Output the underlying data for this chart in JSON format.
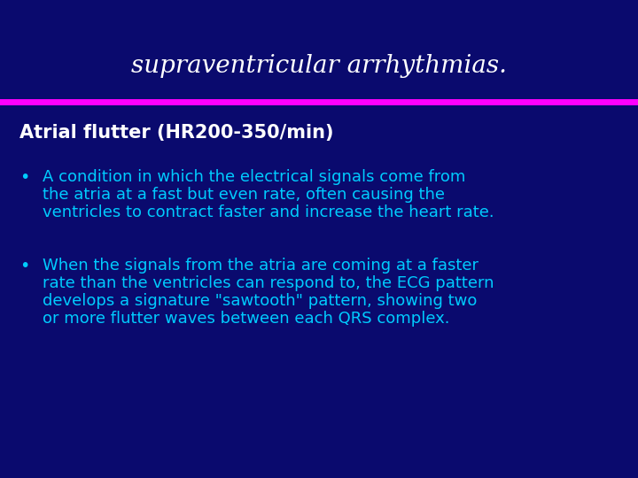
{
  "title": "supraventricular arrhythmias.",
  "title_color": "#ffffff",
  "title_fontsize": 20,
  "background_color": "#0a0a6e",
  "divider_color": "#ff00ff",
  "divider_linewidth": 5,
  "subtitle": "Atrial flutter (HR200-350/min)",
  "subtitle_color": "#ffffff",
  "subtitle_fontsize": 15,
  "bullet_color": "#00ccff",
  "bullet_fontsize": 13,
  "bullet1_line1": "A condition in which the electrical signals come from",
  "bullet1_line2": "the atria at a fast but even rate, often causing the",
  "bullet1_line3": "ventricles to contract faster and increase the heart rate.",
  "bullet2_line1": "When the signals from the atria are coming at a faster",
  "bullet2_line2": "rate than the ventricles can respond to, the ECG pattern",
  "bullet2_line3": "develops a signature \"sawtooth\" pattern, showing two",
  "bullet2_line4": "or more flutter waves between each QRS complex."
}
